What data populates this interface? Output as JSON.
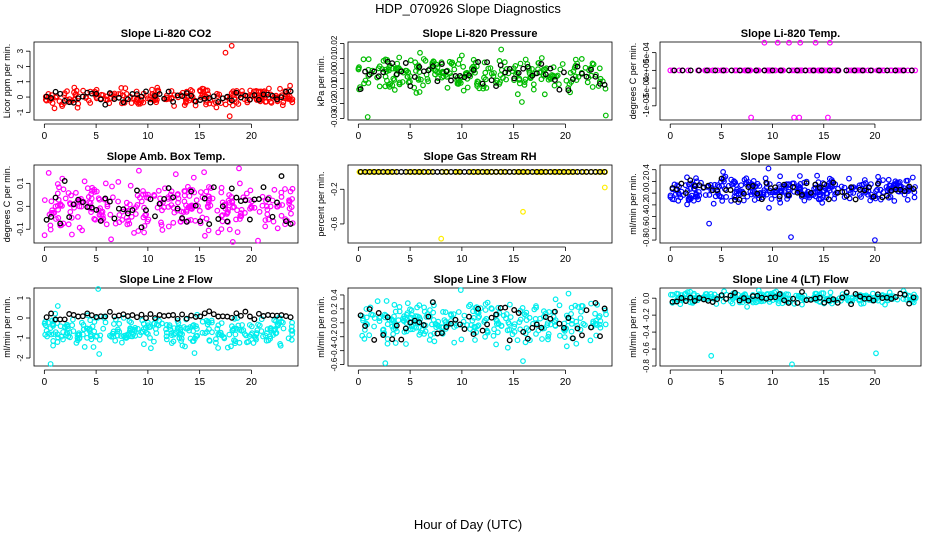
{
  "page": {
    "title": "HDP_070926  Slope Diagnostics",
    "xlabel": "Hour of Day (UTC)"
  },
  "chart_data": [
    {
      "type": "scatter",
      "title": "Slope Li-820 CO2",
      "ylabel": "Licor ppm per min.",
      "color": "#ff0000",
      "xlim": [
        -1,
        24.5
      ],
      "ylim": [
        -1.5,
        3.6
      ],
      "yticks": [
        -1,
        0,
        1,
        2,
        3
      ],
      "yticklabels": [
        "-1",
        "0",
        "1",
        "2",
        "3"
      ],
      "xticks": [
        0,
        5,
        10,
        15,
        20
      ],
      "xticklabels": [
        "0",
        "5",
        "10",
        "15",
        "20"
      ],
      "base": 0.0,
      "spread": 0.28,
      "blackSpread": 0.2,
      "n": 240,
      "nBlack": 55,
      "seed": 1,
      "outliers": [
        [
          17.5,
          2.9
        ],
        [
          18.1,
          3.35
        ],
        [
          18.2,
          -0.55
        ],
        [
          17.9,
          -1.25
        ]
      ]
    },
    {
      "type": "scatter",
      "title": "Slope Li-820 Pressure",
      "ylabel": "kPa per min.",
      "color": "#00bb00",
      "xlim": [
        -1,
        24.5
      ],
      "ylim": [
        -0.031,
        0.021
      ],
      "yticks": [
        -0.03,
        -0.02,
        -0.01,
        0.0,
        0.01,
        0.02
      ],
      "yticklabels": [
        "-0.03",
        "-0.02",
        "-0.01",
        "0.00",
        "0.01",
        "0.02"
      ],
      "xticks": [
        0,
        5,
        10,
        15,
        20
      ],
      "xticklabels": [
        "0",
        "5",
        "10",
        "15",
        "20"
      ],
      "base": 0.0,
      "spread": 0.0055,
      "blackSpread": 0.005,
      "n": 260,
      "nBlack": 55,
      "seed": 2,
      "outliers": [
        [
          0.9,
          -0.029
        ],
        [
          13.8,
          0.016
        ],
        [
          23.9,
          -0.028
        ],
        [
          10.0,
          0.012
        ],
        [
          15.8,
          -0.019
        ]
      ]
    },
    {
      "type": "scatter",
      "title": "Slope Li-820 Temp.",
      "ylabel": "degrees C per min.",
      "color": "#ff00ff",
      "xlim": [
        -1,
        24.5
      ],
      "ylim": [
        -0.0014,
        0.0008
      ],
      "yticks": [
        -0.001,
        -0.0005,
        0.0,
        0.0005
      ],
      "yticklabels": [
        "-1e-03",
        "-5e-04",
        "0e+00",
        "5e-04"
      ],
      "xticks": [
        0,
        5,
        10,
        15,
        20
      ],
      "xticklabels": [
        "0",
        "5",
        "10",
        "15",
        "20"
      ],
      "base": 0.0,
      "spread": 0.0,
      "blackSpread": 0.0,
      "n": 130,
      "nBlack": 30,
      "seed": 3,
      "outliers": [
        [
          9.2,
          0.00078
        ],
        [
          10.5,
          0.00078
        ],
        [
          11.6,
          0.00078
        ],
        [
          12.7,
          0.00078
        ],
        [
          14.2,
          0.00078
        ],
        [
          15.6,
          0.00078
        ],
        [
          7.9,
          -0.00133
        ],
        [
          12.1,
          -0.00133
        ],
        [
          12.6,
          -0.00133
        ],
        [
          15.4,
          -0.00133
        ]
      ]
    },
    {
      "type": "scatter",
      "title": "Slope Amb. Box Temp.",
      "ylabel": "degrees C per min.",
      "color": "#ff00ff",
      "xlim": [
        -1,
        24.5
      ],
      "ylim": [
        -0.16,
        0.18
      ],
      "yticks": [
        -0.1,
        0.0,
        0.1
      ],
      "yticklabels": [
        "-0.1",
        "0.0",
        "0.1"
      ],
      "xticks": [
        0,
        5,
        10,
        15,
        20
      ],
      "xticklabels": [
        "0",
        "5",
        "10",
        "15",
        "20"
      ],
      "base": 0.0,
      "spread": 0.055,
      "blackSpread": 0.05,
      "n": 300,
      "nBlack": 55,
      "seed": 4,
      "outliers": [
        [
          18.8,
          0.165
        ],
        [
          18.2,
          -0.155
        ],
        [
          12.7,
          0.14
        ]
      ]
    },
    {
      "type": "scatter",
      "title": "Slope Gas Stream RH",
      "ylabel": "percent per min.",
      "color": "#ffee00",
      "xlim": [
        -1,
        24.5
      ],
      "ylim": [
        -0.82,
        0.08
      ],
      "yticks": [
        -0.6,
        -0.2
      ],
      "yticklabels": [
        "-0.6",
        "-0.2"
      ],
      "xticks": [
        0,
        5,
        10,
        15,
        20
      ],
      "xticklabels": [
        "0",
        "5",
        "10",
        "15",
        "20"
      ],
      "base": 0.0,
      "spread": 0.0,
      "blackSpread": 0.0,
      "n": 100,
      "nBlack": 55,
      "seed": 5,
      "outliers": [
        [
          8.0,
          -0.77
        ],
        [
          15.9,
          -0.46
        ],
        [
          23.8,
          -0.18
        ],
        [
          0.1,
          0.0
        ]
      ]
    },
    {
      "type": "scatter",
      "title": "Slope Sample Flow",
      "ylabel": "ml/min per min.",
      "color": "#0000ff",
      "xlim": [
        -1,
        24.5
      ],
      "ylim": [
        -0.85,
        0.48
      ],
      "yticks": [
        -0.8,
        -0.6,
        -0.4,
        -0.2,
        0.0,
        0.2,
        0.4
      ],
      "yticklabels": [
        "-0.8",
        "-0.6",
        "-0.4",
        "-0.2",
        "0.0",
        "0.2",
        "0.4"
      ],
      "xticks": [
        0,
        5,
        10,
        15,
        20
      ],
      "xticklabels": [
        "0",
        "5",
        "10",
        "15",
        "20"
      ],
      "base": 0.05,
      "spread": 0.11,
      "blackSpread": 0.09,
      "n": 320,
      "nBlack": 55,
      "seed": 6,
      "outliers": [
        [
          3.8,
          -0.52
        ],
        [
          11.8,
          -0.75
        ],
        [
          20.0,
          -0.8
        ],
        [
          9.6,
          0.42
        ]
      ]
    },
    {
      "type": "scatter",
      "title": "Slope Line 2 Flow",
      "ylabel": "ml/min per min.",
      "color": "#00eeee",
      "xlim": [
        -1,
        24.5
      ],
      "ylim": [
        -2.4,
        1.5
      ],
      "yticks": [
        -2,
        -1,
        0,
        1
      ],
      "yticklabels": [
        "-2",
        "-1",
        "0",
        "1"
      ],
      "xticks": [
        0,
        5,
        10,
        15,
        20
      ],
      "xticklabels": [
        "0",
        "5",
        "10",
        "15",
        "20"
      ],
      "base": -0.65,
      "spread": 0.38,
      "blackSpread": 0.1,
      "blackBase": 0.1,
      "n": 300,
      "nBlack": 55,
      "seed": 7,
      "outliers": [
        [
          0.6,
          -2.3
        ],
        [
          5.2,
          1.45
        ],
        [
          5.3,
          -1.8
        ],
        [
          1.3,
          0.6
        ]
      ]
    },
    {
      "type": "scatter",
      "title": "Slope Line 3 Flow",
      "ylabel": "ml/min per min.",
      "color": "#00eeee",
      "xlim": [
        -1,
        24.5
      ],
      "ylim": [
        -0.62,
        0.5
      ],
      "yticks": [
        -0.6,
        -0.4,
        -0.2,
        0.0,
        0.2,
        0.4
      ],
      "yticklabels": [
        "-0.6",
        "-0.4",
        "-0.2",
        "0.0",
        "0.2",
        "0.4"
      ],
      "xticks": [
        0,
        5,
        10,
        15,
        20
      ],
      "xticklabels": [
        "0",
        "5",
        "10",
        "15",
        "20"
      ],
      "base": 0.0,
      "spread": 0.14,
      "blackSpread": 0.14,
      "n": 300,
      "nBlack": 55,
      "seed": 8,
      "outliers": [
        [
          2.6,
          -0.58
        ],
        [
          9.9,
          0.47
        ],
        [
          15.9,
          -0.55
        ],
        [
          20.3,
          0.42
        ]
      ]
    },
    {
      "type": "scatter",
      "title": "Slope Line 4 (LT) Flow",
      "ylabel": "ml/min per min.",
      "color": "#00eeee",
      "xlim": [
        -1,
        24.5
      ],
      "ylim": [
        -0.8,
        0.12
      ],
      "yticks": [
        -0.8,
        -0.6,
        -0.4,
        -0.2,
        0.0
      ],
      "yticklabels": [
        "-0.8",
        "-0.6",
        "-0.4",
        "-0.2",
        "0.0"
      ],
      "xticks": [
        0,
        5,
        10,
        15,
        20
      ],
      "xticklabels": [
        "0",
        "5",
        "10",
        "15",
        "20"
      ],
      "base": 0.0,
      "spread": 0.035,
      "blackSpread": 0.035,
      "n": 260,
      "nBlack": 55,
      "seed": 9,
      "outliers": [
        [
          4.0,
          -0.68
        ],
        [
          11.9,
          -0.78
        ],
        [
          20.1,
          -0.65
        ]
      ]
    }
  ]
}
